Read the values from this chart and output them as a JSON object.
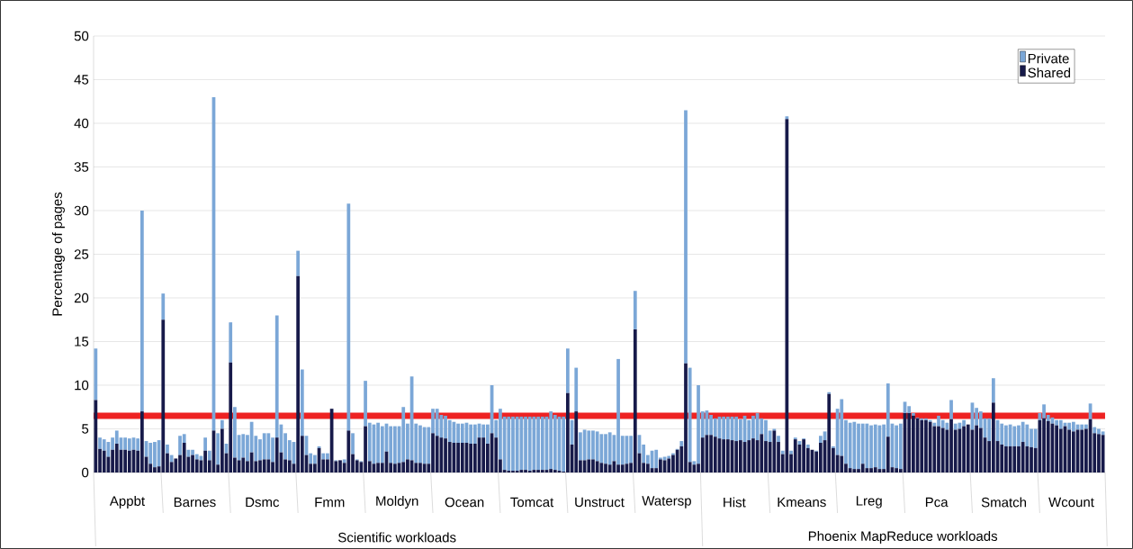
{
  "chart_data": {
    "type": "bar",
    "stacked": true,
    "ylabel": "Percentage of pages",
    "categories": [
      null,
      null,
      null,
      null,
      null,
      null,
      null,
      null,
      null,
      null,
      null,
      null,
      null,
      null,
      null,
      null,
      null,
      null,
      null,
      null,
      null,
      null,
      null,
      null,
      null,
      null,
      null,
      null,
      null,
      null,
      null,
      null,
      null,
      null,
      null,
      null,
      null,
      null,
      null,
      null,
      null,
      null,
      null,
      null,
      null,
      null,
      null,
      null,
      null,
      null,
      null,
      null,
      null,
      null,
      null,
      null,
      null,
      null,
      null,
      null,
      null,
      null,
      null,
      null,
      null,
      null,
      null,
      null,
      null,
      null,
      null,
      null,
      null,
      null,
      null,
      null,
      null,
      null,
      null,
      null,
      null,
      null,
      null,
      null,
      null,
      null,
      null,
      null,
      null,
      null,
      null,
      null,
      null,
      null,
      null,
      null,
      null,
      null,
      null,
      null,
      null,
      null,
      null,
      null,
      null,
      null,
      null,
      null,
      null,
      null,
      null,
      null,
      null,
      null,
      null,
      null,
      null,
      null,
      null,
      null,
      null,
      null,
      null,
      null,
      null,
      null,
      null,
      null,
      null,
      null,
      null,
      null,
      null,
      null,
      null,
      null,
      null,
      null,
      null,
      null,
      null,
      null,
      null,
      null,
      null,
      null,
      null,
      null,
      null,
      null,
      null,
      null,
      null,
      null,
      null,
      null,
      null,
      null,
      null,
      null,
      null,
      null,
      null,
      null,
      null,
      null,
      null,
      null,
      null,
      null,
      null,
      null,
      null,
      null,
      null,
      null,
      null,
      null,
      null,
      null,
      null,
      null,
      null,
      null,
      null,
      null,
      null,
      null,
      null,
      null,
      null,
      null,
      null,
      null,
      null,
      null,
      null,
      null,
      null,
      null,
      null,
      null,
      null,
      null,
      null,
      null,
      null,
      null,
      null,
      null,
      null,
      null,
      null,
      null,
      null,
      null,
      null,
      null,
      null,
      null,
      null,
      null,
      null,
      null,
      null,
      null,
      null,
      null,
      null,
      null,
      null,
      null,
      null,
      null,
      null,
      null,
      null,
      null,
      null,
      null
    ],
    "series": [
      {
        "name": "Shared",
        "color": "#171a4a",
        "values": [
          8.3,
          2.7,
          2.5,
          1.8,
          2.6,
          3.3,
          2.6,
          2.6,
          2.5,
          2.6,
          2.5,
          7.0,
          1.8,
          1.0,
          0.6,
          0.7,
          17.5,
          2.2,
          1.2,
          1.6,
          2.0,
          3.4,
          1.8,
          2.0,
          1.5,
          1.4,
          2.5,
          1.4,
          4.8,
          0.9,
          5.0,
          2.2,
          12.6,
          1.7,
          1.4,
          1.7,
          1.3,
          2.3,
          1.3,
          1.4,
          1.5,
          1.5,
          1.2,
          4.0,
          2.3,
          1.5,
          1.4,
          1.0,
          22.5,
          4.2,
          2.0,
          1.0,
          1.0,
          2.8,
          1.5,
          1.5,
          7.3,
          1.3,
          1.4,
          1.1,
          4.8,
          2.1,
          1.4,
          1.2,
          5.3,
          1.3,
          1.0,
          1.1,
          1.1,
          2.4,
          1.1,
          1.0,
          1.1,
          1.2,
          1.5,
          1.4,
          1.1,
          1.1,
          1.0,
          1.0,
          4.5,
          4.2,
          4.0,
          3.9,
          3.5,
          3.4,
          3.4,
          3.4,
          3.4,
          3.3,
          3.3,
          4.0,
          4.0,
          3.3,
          4.5,
          4.0,
          1.5,
          0.3,
          0.2,
          0.2,
          0.2,
          0.3,
          0.3,
          0.2,
          0.3,
          0.3,
          0.3,
          0.3,
          0.4,
          0.3,
          0.2,
          0.1,
          9.1,
          3.2,
          7.0,
          1.4,
          1.4,
          1.5,
          1.5,
          1.3,
          1.1,
          1.0,
          0.9,
          1.3,
          0.9,
          0.9,
          1.0,
          1.1,
          16.4,
          2.2,
          1.1,
          1.0,
          0.5,
          0.5,
          1.5,
          1.4,
          1.6,
          2.0,
          2.6,
          3.0,
          12.5,
          1.2,
          0.9,
          1.0,
          4.0,
          4.3,
          4.3,
          4.1,
          3.9,
          3.8,
          3.8,
          3.7,
          3.6,
          3.7,
          3.5,
          3.7,
          3.9,
          3.7,
          4.4,
          3.6,
          3.5,
          4.8,
          3.5,
          2.1,
          40.5,
          2.1,
          3.8,
          3.2,
          3.8,
          2.8,
          2.6,
          2.4,
          3.4,
          3.7,
          9.0,
          2.8,
          2.0,
          1.9,
          1.0,
          0.5,
          0.4,
          0.4,
          1.0,
          0.5,
          0.5,
          0.6,
          0.4,
          0.4,
          4.1,
          0.6,
          0.5,
          0.4,
          6.8,
          6.8,
          6.5,
          6.2,
          6.0,
          6.0,
          5.8,
          5.3,
          5.3,
          5.1,
          4.9,
          6.1,
          4.9,
          5.0,
          5.3,
          5.5,
          4.9,
          5.4,
          5.1,
          4.0,
          3.6,
          8.0,
          3.6,
          3.2,
          3.0,
          3.0,
          3.0,
          3.0,
          3.5,
          3.0,
          2.9,
          2.8,
          6.0,
          6.2,
          5.9,
          5.6,
          5.4,
          5.0,
          5.3,
          4.9,
          4.7,
          4.9,
          4.9,
          5.0,
          6.1,
          4.5,
          4.4,
          4.3
        ]
      },
      {
        "name": "Private",
        "color": "#7ba7d7",
        "values": [
          5.9,
          1.3,
          1.3,
          1.7,
          1.4,
          1.5,
          1.4,
          1.4,
          1.4,
          1.4,
          1.4,
          23.0,
          1.8,
          2.4,
          2.9,
          3.0,
          3.0,
          1.0,
          0.8,
          0,
          2.2,
          1.0,
          0.8,
          0.6,
          0.6,
          0.5,
          1.5,
          1.1,
          38.2,
          3.6,
          1.0,
          1.1,
          4.6,
          5.8,
          2.9,
          2.7,
          3.0,
          3.5,
          2.9,
          2.4,
          3.0,
          3.0,
          2.8,
          14.0,
          3.2,
          3.0,
          2.3,
          2.5,
          2.9,
          7.6,
          2.2,
          1.2,
          1.0,
          0.2,
          0.7,
          0.7,
          0,
          0.1,
          0,
          0.4,
          26.0,
          2.4,
          0.1,
          0.1,
          5.2,
          4.4,
          4.5,
          4.6,
          4.2,
          3.2,
          4.2,
          4.3,
          4.2,
          6.3,
          4.1,
          9.6,
          4.5,
          4.3,
          4.2,
          4.2,
          2.8,
          3.1,
          2.6,
          2.6,
          2.5,
          2.4,
          2.2,
          2.2,
          2.3,
          2.2,
          2.2,
          1.6,
          1.5,
          2.2,
          5.5,
          2.0,
          5.8,
          6.1,
          6.2,
          6.2,
          6.2,
          6.1,
          6.1,
          6.2,
          6.1,
          6.1,
          6.1,
          6.1,
          6.6,
          6.3,
          6.2,
          6.3,
          5.1,
          2.8,
          5.0,
          3.2,
          3.5,
          3.3,
          3.3,
          3.4,
          3.3,
          3.4,
          3.7,
          3.0,
          12.1,
          3.3,
          3.2,
          3.1,
          4.4,
          2.1,
          2.1,
          1.0,
          2.0,
          2.1,
          0.2,
          0.4,
          0.3,
          0.2,
          0.1,
          0.6,
          29.0,
          10.8,
          0.4,
          9.0,
          3.0,
          2.8,
          2.3,
          2.1,
          2.5,
          2.6,
          2.6,
          2.7,
          2.8,
          2.4,
          3.0,
          2.3,
          2.6,
          3.1,
          1.8,
          2.4,
          1.3,
          0.2,
          0.7,
          0.4,
          0.3,
          0.4,
          0.2,
          0.4,
          0.1,
          0.4,
          0,
          0.1,
          0.8,
          1.0,
          0.2,
          0.2,
          5.3,
          6.5,
          5.0,
          5.2,
          5.4,
          5.2,
          4.6,
          5.1,
          4.9,
          4.9,
          5.0,
          5.1,
          6.1,
          5.0,
          4.9,
          5.2,
          1.3,
          0.8,
          0.3,
          0.1,
          0.2,
          0.2,
          0.2,
          0.4,
          1.2,
          0.9,
          0.8,
          2.2,
          0.7,
          0.7,
          0.7,
          0,
          3.1,
          2.0,
          1.9,
          2.2,
          2.6,
          2.8,
          2.4,
          2.4,
          2.4,
          2.5,
          2.3,
          2.4,
          2.3,
          2.5,
          2.1,
          2.2,
          0.8,
          1.6,
          0.7,
          0.7,
          0.6,
          1.0,
          0.4,
          0.8,
          1.1,
          0.6,
          0.6,
          0.5,
          1.8,
          0.7,
          0.6,
          0.4
        ]
      }
    ],
    "ylim": [
      0,
      50
    ],
    "yticks": [
      0,
      5,
      10,
      15,
      20,
      25,
      30,
      35,
      40,
      45,
      50
    ],
    "grid": "y",
    "legend": "top right",
    "ref_lines": [
      {
        "axis": "y",
        "value": 6.5,
        "color": "#ee2222"
      }
    ],
    "annotations": [
      "Appbt",
      "Barnes",
      "Dsmc",
      "Fmm",
      "Moldyn",
      "Ocean",
      "Tomcat",
      "Unstruct",
      "Watersp",
      "Hist",
      "Kmeans",
      "Lreg",
      "Pca",
      "Smatch",
      "Wcount",
      "Scientific workloads",
      "Phoenix MapReduce workloads"
    ]
  }
}
